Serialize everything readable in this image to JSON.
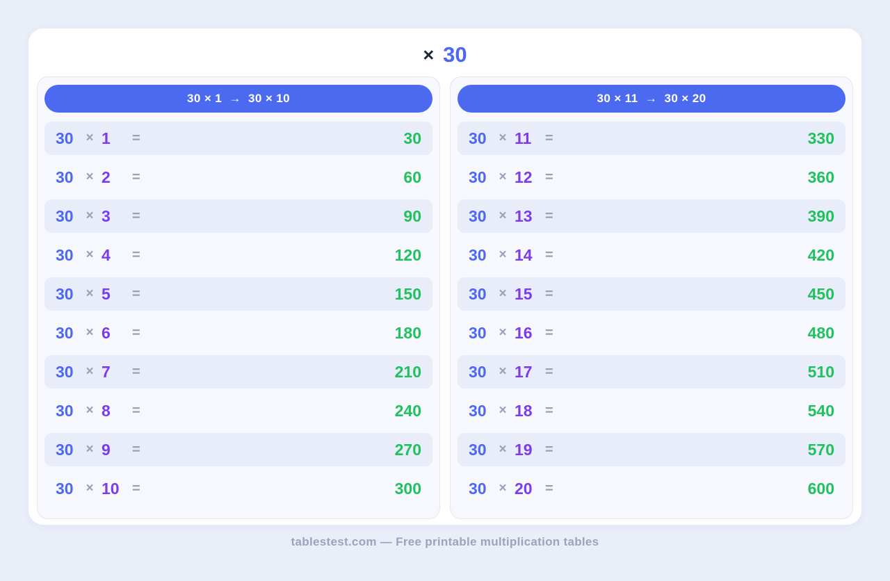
{
  "title": {
    "symbol": "×",
    "number": "30"
  },
  "colors": {
    "accent_blue": "#4c6af0",
    "multiplicand_blue": "#4d67f0",
    "multiplier_purple": "#7b3bee",
    "result_green": "#21c15f",
    "muted_gray": "#99a0b8",
    "odd_row_bg": "#e9edf9",
    "page_bg": "#eaeef9"
  },
  "footer": {
    "text": "tablestest.com — Free printable multiplication tables"
  },
  "panels": [
    {
      "header": "30 × 1  →  30 × 10",
      "rows": [
        {
          "a": "30",
          "x": "×",
          "b": "1",
          "eq": "=",
          "result": "30"
        },
        {
          "a": "30",
          "x": "×",
          "b": "2",
          "eq": "=",
          "result": "60"
        },
        {
          "a": "30",
          "x": "×",
          "b": "3",
          "eq": "=",
          "result": "90"
        },
        {
          "a": "30",
          "x": "×",
          "b": "4",
          "eq": "=",
          "result": "120"
        },
        {
          "a": "30",
          "x": "×",
          "b": "5",
          "eq": "=",
          "result": "150"
        },
        {
          "a": "30",
          "x": "×",
          "b": "6",
          "eq": "=",
          "result": "180"
        },
        {
          "a": "30",
          "x": "×",
          "b": "7",
          "eq": "=",
          "result": "210"
        },
        {
          "a": "30",
          "x": "×",
          "b": "8",
          "eq": "=",
          "result": "240"
        },
        {
          "a": "30",
          "x": "×",
          "b": "9",
          "eq": "=",
          "result": "270"
        },
        {
          "a": "30",
          "x": "×",
          "b": "10",
          "eq": "=",
          "result": "300"
        }
      ]
    },
    {
      "header": "30 × 11  →  30 × 20",
      "rows": [
        {
          "a": "30",
          "x": "×",
          "b": "11",
          "eq": "=",
          "result": "330"
        },
        {
          "a": "30",
          "x": "×",
          "b": "12",
          "eq": "=",
          "result": "360"
        },
        {
          "a": "30",
          "x": "×",
          "b": "13",
          "eq": "=",
          "result": "390"
        },
        {
          "a": "30",
          "x": "×",
          "b": "14",
          "eq": "=",
          "result": "420"
        },
        {
          "a": "30",
          "x": "×",
          "b": "15",
          "eq": "=",
          "result": "450"
        },
        {
          "a": "30",
          "x": "×",
          "b": "16",
          "eq": "=",
          "result": "480"
        },
        {
          "a": "30",
          "x": "×",
          "b": "17",
          "eq": "=",
          "result": "510"
        },
        {
          "a": "30",
          "x": "×",
          "b": "18",
          "eq": "=",
          "result": "540"
        },
        {
          "a": "30",
          "x": "×",
          "b": "19",
          "eq": "=",
          "result": "570"
        },
        {
          "a": "30",
          "x": "×",
          "b": "20",
          "eq": "=",
          "result": "600"
        }
      ]
    }
  ]
}
